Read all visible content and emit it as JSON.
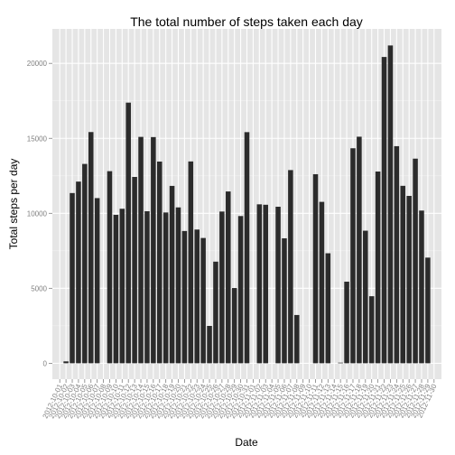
{
  "chart_data": {
    "type": "bar",
    "title": "The total number of steps taken each day",
    "xlabel": "Date",
    "ylabel": "Total steps per day",
    "ylim": [
      -1060,
      22300
    ],
    "grid": true,
    "yticks": [
      0,
      5000,
      10000,
      15000,
      20000
    ],
    "ytick_labels": [
      "0",
      "5000",
      "10000",
      "15000",
      "20000"
    ],
    "bar_color": "#2b2b2b",
    "panel_color": "#e5e5e5",
    "categories": [
      "2012-10-01",
      "2012-10-02",
      "2012-10-03",
      "2012-10-04",
      "2012-10-05",
      "2012-10-06",
      "2012-10-07",
      "2012-10-08",
      "2012-10-09",
      "2012-10-10",
      "2012-10-11",
      "2012-10-12",
      "2012-10-13",
      "2012-10-14",
      "2012-10-15",
      "2012-10-16",
      "2012-10-17",
      "2012-10-18",
      "2012-10-19",
      "2012-10-20",
      "2012-10-21",
      "2012-10-22",
      "2012-10-23",
      "2012-10-24",
      "2012-10-25",
      "2012-10-26",
      "2012-10-27",
      "2012-10-28",
      "2012-10-29",
      "2012-10-30",
      "2012-10-31",
      "2012-11-01",
      "2012-11-02",
      "2012-11-03",
      "2012-11-04",
      "2012-11-05",
      "2012-11-06",
      "2012-11-07",
      "2012-11-08",
      "2012-11-09",
      "2012-11-10",
      "2012-11-11",
      "2012-11-12",
      "2012-11-13",
      "2012-11-14",
      "2012-11-15",
      "2012-11-16",
      "2012-11-17",
      "2012-11-18",
      "2012-11-19",
      "2012-11-20",
      "2012-11-21",
      "2012-11-22",
      "2012-11-23",
      "2012-11-24",
      "2012-11-25",
      "2012-11-26",
      "2012-11-27",
      "2012-11-28",
      "2012-11-29",
      "2012-11-30"
    ],
    "values": [
      0,
      126,
      11352,
      12116,
      13294,
      15420,
      11015,
      0,
      12811,
      9900,
      10304,
      17382,
      12426,
      15098,
      10139,
      15084,
      13452,
      10056,
      11829,
      10395,
      8821,
      13460,
      8918,
      8355,
      2492,
      6778,
      10119,
      11458,
      5018,
      9819,
      15414,
      0,
      10600,
      10571,
      0,
      10439,
      8334,
      12883,
      3219,
      0,
      0,
      12608,
      10765,
      7336,
      0,
      41,
      5441,
      14339,
      15110,
      8841,
      4472,
      12787,
      20427,
      21194,
      14478,
      11834,
      11162,
      13646,
      10183,
      7047,
      0
    ]
  }
}
